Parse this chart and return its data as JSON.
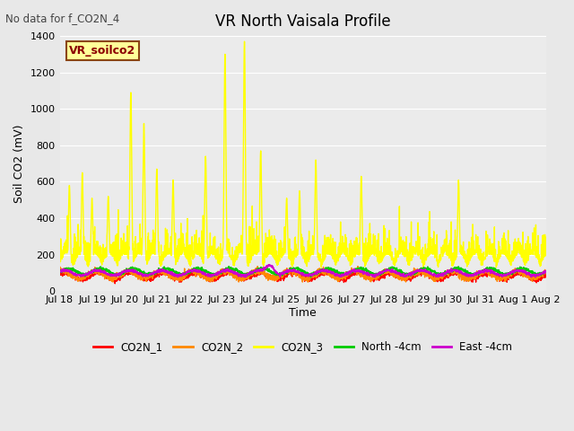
{
  "title": "VR North Vaisala Profile",
  "no_data_text": "No data for f_CO2N_4",
  "ylabel": "Soil CO2 (mV)",
  "xlabel": "Time",
  "ylim": [
    0,
    1400
  ],
  "background_color": "#e8e8e8",
  "plot_bg_color": "#ebebeb",
  "grid_color": "white",
  "legend_label": "VR_soilco2",
  "legend_box_color": "#ffff99",
  "legend_box_edge": "#8B4513",
  "xtick_labels": [
    "Jul 18",
    "Jul 19",
    "Jul 20",
    "Jul 21",
    "Jul 22",
    "Jul 23",
    "Jul 24",
    "Jul 25",
    "Jul 26",
    "Jul 27",
    "Jul 28",
    "Jul 29",
    "Jul 30",
    "Jul 31",
    "Aug 1",
    "Aug 2"
  ],
  "series": {
    "CO2N_1": {
      "color": "#ff0000",
      "lw": 1.0
    },
    "CO2N_2": {
      "color": "#ff8800",
      "lw": 1.0
    },
    "CO2N_3": {
      "color": "#ffff00",
      "lw": 1.0
    },
    "North_4cm": {
      "color": "#00cc00",
      "lw": 1.2
    },
    "East_4cm": {
      "color": "#cc00cc",
      "lw": 1.2
    }
  },
  "legend_entries": [
    {
      "label": "CO2N_1",
      "color": "#ff0000"
    },
    {
      "label": "CO2N_2",
      "color": "#ff8800"
    },
    {
      "label": "CO2N_3",
      "color": "#ffff00"
    },
    {
      "label": "North -4cm",
      "color": "#00cc00"
    },
    {
      "label": "East -4cm",
      "color": "#cc00cc"
    }
  ]
}
